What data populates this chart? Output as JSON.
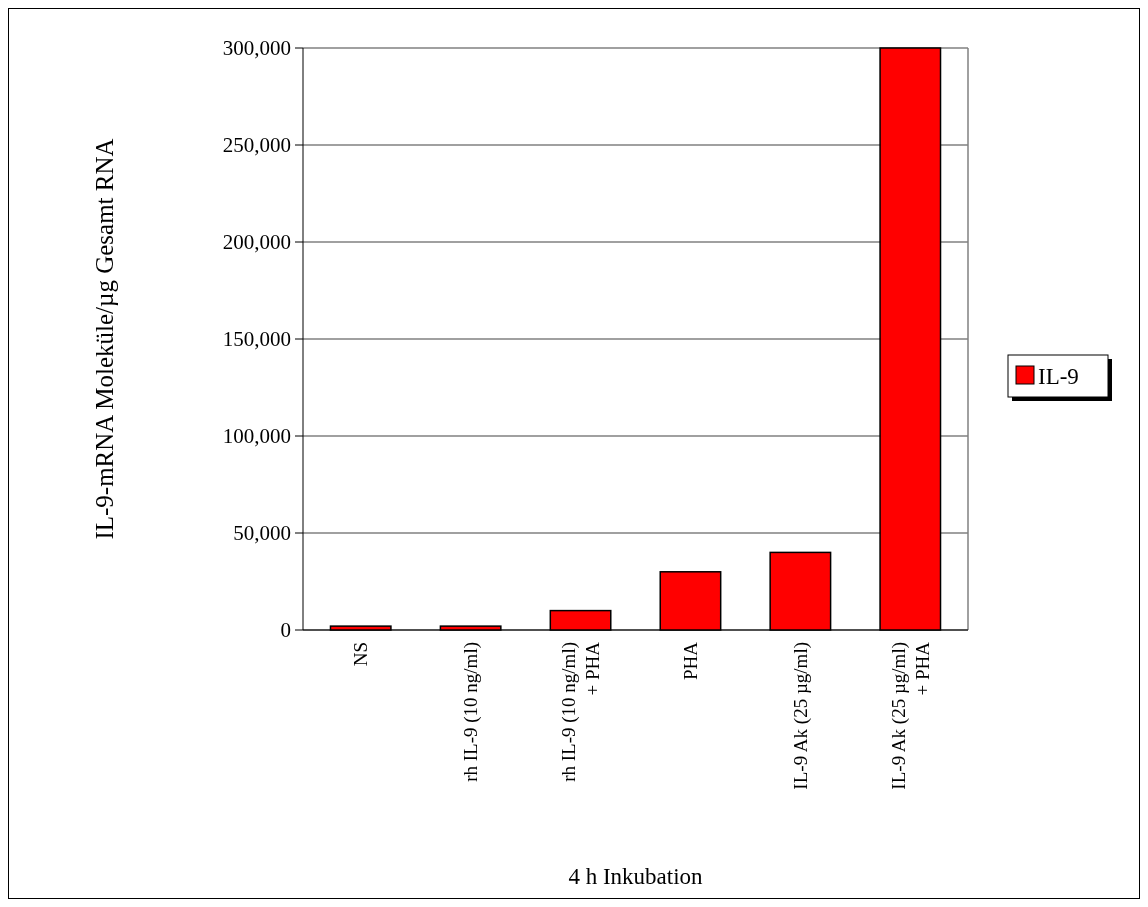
{
  "chart_data": {
    "type": "bar",
    "xlabel": "4 h Inkubation",
    "ylabel": "IL-9-mRNA Moleküle/µg Gesamt RNA",
    "categories": [
      "NS",
      "rh IL-9 (10 ng/ml)",
      "rh IL-9 (10 ng/ml)\n+ PHA",
      "PHA",
      "IL-9 Ak (25 µg/ml)",
      "IL-9 Ak (25 µg/ml)\n+ PHA"
    ],
    "series": [
      {
        "name": "IL-9",
        "color": "#ff0000",
        "values": [
          2000,
          2000,
          10000,
          30000,
          40000,
          300000
        ]
      }
    ],
    "ylim": [
      0,
      300000
    ],
    "yticks": [
      {
        "value": 0,
        "label": "0"
      },
      {
        "value": 50000,
        "label": "50,000"
      },
      {
        "value": 100000,
        "label": "100,000"
      },
      {
        "value": 150000,
        "label": "150,000"
      },
      {
        "value": 200000,
        "label": "200,000"
      },
      {
        "value": 250000,
        "label": "250,000"
      },
      {
        "value": 300000,
        "label": "300,000"
      }
    ],
    "grid": "y",
    "legend": "right"
  }
}
